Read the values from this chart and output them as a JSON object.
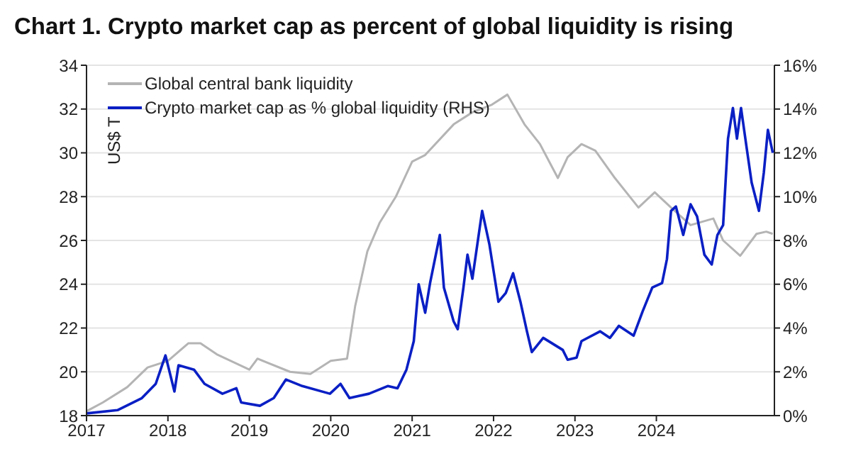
{
  "chart_data": {
    "type": "line",
    "title": "Chart 1. Crypto market cap as percent of global liquidity is rising",
    "ylabel": "US$ T",
    "xlim": [
      2017,
      2025.45
    ],
    "xticks": [
      2017,
      2018,
      2019,
      2020,
      2021,
      2022,
      2023,
      2024
    ],
    "ylim": [
      18,
      34
    ],
    "yticks": [
      18,
      20,
      22,
      24,
      26,
      28,
      30,
      32,
      34
    ],
    "y2lim": [
      0,
      16
    ],
    "y2ticks": [
      {
        "value": 0,
        "label": "0%"
      },
      {
        "value": 2,
        "label": "2%"
      },
      {
        "value": 4,
        "label": "4%"
      },
      {
        "value": 6,
        "label": "6%"
      },
      {
        "value": 8,
        "label": "8%"
      },
      {
        "value": 10,
        "label": "10%"
      },
      {
        "value": 12,
        "label": "12%"
      },
      {
        "value": 14,
        "label": "14%"
      },
      {
        "value": 16,
        "label": "16%"
      }
    ],
    "grid": "y",
    "legend": "top left",
    "marker": "none",
    "line_style": "solid",
    "series": [
      {
        "name": "Global central bank liquidity",
        "color": "#b4b4b4",
        "x": [
          2017,
          2017.2,
          2017.5,
          2017.75,
          2018,
          2018.25,
          2018.4,
          2018.6,
          2019,
          2019.1,
          2019.5,
          2019.75,
          2020,
          2020.2,
          2020.3,
          2020.45,
          2020.6,
          2020.8,
          2021,
          2021.16,
          2021.51,
          2021.74,
          2021.98,
          2022.17,
          2022.38,
          2022.57,
          2022.79,
          2022.91,
          2023.08,
          2023.25,
          2023.48,
          2023.78,
          2023.98,
          2024.18,
          2024.42,
          2024.7,
          2024.82,
          2025.03,
          2025.23,
          2025.35,
          2025.43
        ],
        "values": [
          18.2,
          18.6,
          19.3,
          20.2,
          20.5,
          21.3,
          21.3,
          20.8,
          20.1,
          20.6,
          20,
          19.9,
          20.5,
          20.6,
          23,
          25.5,
          26.8,
          28,
          29.6,
          29.9,
          31.3,
          31.85,
          32.2,
          32.66,
          31.3,
          30.4,
          28.85,
          29.8,
          30.4,
          30.1,
          28.9,
          27.5,
          28.2,
          27.5,
          26.7,
          27,
          26,
          25.3,
          26.3,
          26.4,
          26.3
        ]
      },
      {
        "name": "Crypto market cap as % global liquidity (RHS)",
        "color": "#0a1fc4",
        "axis": "y2",
        "x": [
          2017,
          2017.38,
          2017.68,
          2017.85,
          2017.97,
          2018.08,
          2018.13,
          2018.32,
          2018.45,
          2018.67,
          2018.84,
          2018.9,
          2019.13,
          2019.3,
          2019.45,
          2019.65,
          2019.99,
          2020.12,
          2020.23,
          2020.47,
          2020.7,
          2020.82,
          2020.93,
          2021.02,
          2021.08,
          2021.16,
          2021.22,
          2021.34,
          2021.39,
          2021.51,
          2021.56,
          2021.63,
          2021.68,
          2021.74,
          2021.86,
          2021.95,
          2022.06,
          2022.15,
          2022.24,
          2022.33,
          2022.41,
          2022.47,
          2022.61,
          2022.85,
          2022.91,
          2023.02,
          2023.08,
          2023.31,
          2023.43,
          2023.54,
          2023.72,
          2023.83,
          2023.95,
          2024.07,
          2024.13,
          2024.18,
          2024.24,
          2024.33,
          2024.42,
          2024.5,
          2024.59,
          2024.68,
          2024.75,
          2024.82,
          2024.88,
          2024.94,
          2024.99,
          2025.04,
          2025.11,
          2025.17,
          2025.26,
          2025.32,
          2025.37,
          2025.43
        ],
        "values": [
          0.1,
          0.25,
          0.8,
          1.45,
          2.75,
          1.1,
          2.3,
          2.1,
          1.45,
          1,
          1.25,
          0.6,
          0.45,
          0.8,
          1.65,
          1.35,
          1,
          1.45,
          0.8,
          1,
          1.35,
          1.25,
          2.1,
          3.4,
          6,
          4.7,
          6.05,
          8.25,
          5.85,
          4.3,
          3.95,
          5.85,
          7.35,
          6.25,
          9.35,
          7.8,
          5.2,
          5.6,
          6.5,
          5.2,
          3.85,
          2.9,
          3.55,
          3,
          2.55,
          2.65,
          3.4,
          3.85,
          3.55,
          4.1,
          3.65,
          4.75,
          5.85,
          6.05,
          7.15,
          9.35,
          9.55,
          8.25,
          9.65,
          9.1,
          7.35,
          6.9,
          8.25,
          8.7,
          12.65,
          14.05,
          12.65,
          14.05,
          12.2,
          10.65,
          9.35,
          11.1,
          13.05,
          12
        ]
      }
    ]
  }
}
